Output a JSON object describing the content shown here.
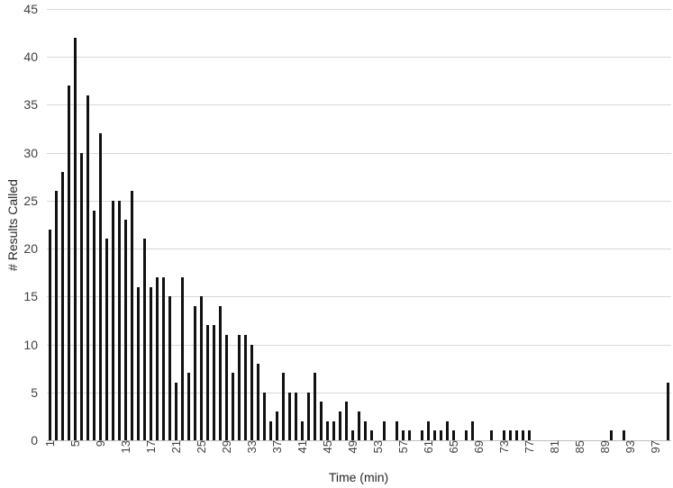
{
  "chart_data": {
    "type": "bar",
    "title": "",
    "xlabel": "Time (min)",
    "ylabel": "# Results Called",
    "x_range": [
      1,
      99
    ],
    "x": [
      1,
      2,
      3,
      4,
      5,
      6,
      7,
      8,
      9,
      10,
      11,
      12,
      13,
      14,
      15,
      16,
      17,
      18,
      19,
      20,
      21,
      22,
      23,
      24,
      25,
      26,
      27,
      28,
      29,
      30,
      31,
      32,
      33,
      34,
      35,
      36,
      37,
      38,
      39,
      40,
      41,
      42,
      43,
      44,
      45,
      46,
      47,
      48,
      49,
      50,
      51,
      52,
      53,
      54,
      55,
      56,
      57,
      58,
      59,
      60,
      61,
      62,
      63,
      64,
      65,
      66,
      67,
      68,
      69,
      70,
      71,
      72,
      73,
      74,
      75,
      76,
      77,
      78,
      79,
      80,
      81,
      82,
      83,
      84,
      85,
      86,
      87,
      88,
      89,
      90,
      91,
      92,
      93,
      94,
      95,
      96,
      97,
      98,
      99
    ],
    "values": [
      22,
      26,
      28,
      37,
      42,
      30,
      36,
      24,
      32,
      21,
      25,
      25,
      23,
      26,
      16,
      21,
      16,
      17,
      17,
      15,
      6,
      17,
      7,
      14,
      15,
      12,
      12,
      14,
      11,
      7,
      11,
      11,
      10,
      8,
      5,
      2,
      3,
      7,
      5,
      5,
      2,
      5,
      7,
      4,
      2,
      2,
      3,
      4,
      1,
      3,
      2,
      1,
      0,
      2,
      0,
      2,
      1,
      1,
      0,
      1,
      2,
      1,
      1,
      2,
      1,
      0,
      1,
      2,
      0,
      0,
      1,
      0,
      1,
      1,
      1,
      1,
      1,
      0,
      0,
      0,
      0,
      0,
      0,
      0,
      0,
      0,
      0,
      0,
      0,
      1,
      0,
      1,
      0,
      0,
      0,
      0,
      0,
      0,
      6
    ],
    "ylim": [
      0,
      45
    ],
    "y_ticks": [
      0,
      5,
      10,
      15,
      20,
      25,
      30,
      35,
      40,
      45
    ],
    "y_tick_labels": [
      "0",
      "5",
      "10",
      "15",
      "20",
      "25",
      "30",
      "35",
      "40",
      "45"
    ],
    "x_tick_labels": [
      "1",
      "5",
      "9",
      "13",
      "17",
      "21",
      "25",
      "29",
      "33",
      "37",
      "41",
      "45",
      "49",
      "53",
      "57",
      "61",
      "65",
      "69",
      "73",
      "77",
      "81",
      "85",
      "89",
      "93",
      "97"
    ],
    "x_tick_values": [
      1,
      5,
      9,
      13,
      17,
      21,
      25,
      29,
      33,
      37,
      41,
      45,
      49,
      53,
      57,
      61,
      65,
      69,
      73,
      77,
      81,
      85,
      89,
      93,
      97
    ],
    "grid": "horizontal",
    "legend_position": "none",
    "bar_color": "#111111",
    "gridline_color": "#d9d9d9",
    "axisline_color": "#bfbfbf",
    "tick_label_color": "#404040"
  }
}
